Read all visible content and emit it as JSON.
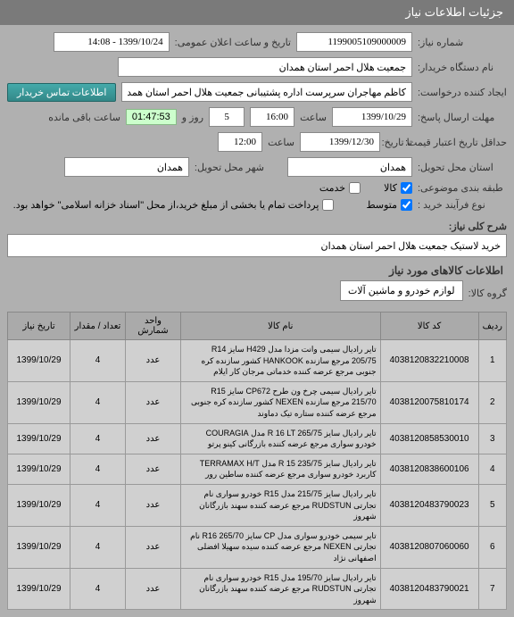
{
  "header_title": "جزئیات اطلاعات نیاز",
  "form": {
    "need_no_label": "شماره نیاز:",
    "need_no": "1199005109000009",
    "announce_label": "تاریخ و ساعت اعلان عمومی:",
    "announce_value": "1399/10/24 - 14:08",
    "buyer_label": "نام دستگاه خریدار:",
    "buyer_value": "جمعیت هلال احمر استان همدان",
    "creator_label": "ایجاد کننده درخواست:",
    "creator_value": "کاظم مهاجران سرپرست اداره پشتیبانی جمعیت هلال احمر استان همدان",
    "contact_btn": "اطلاعات تماس خریدار",
    "deadline_label": "مهلت ارسال پاسخ:",
    "deadline_date": "1399/10/29",
    "time_label": "ساعت",
    "deadline_time": "16:00",
    "days_remaining": "5",
    "days_label": "روز و",
    "countdown": "01:47:53",
    "remaining_label": "ساعت باقی مانده",
    "validity_label": "حداقل تاریخ اعتبار قیمت:",
    "validity_to_label": "تا تاریخ:",
    "validity_date": "1399/12/30",
    "validity_time": "12:00",
    "delivery_state_label": "استان محل تحویل:",
    "delivery_state": "همدان",
    "delivery_city_label": "شهر محل تحویل:",
    "delivery_city": "همدان",
    "category_label": "طبقه بندی موضوعی:",
    "goods_label": "کالا",
    "service_label": "خدمت",
    "process_label": "نوع فرآیند خرید :",
    "medium_label": "متوسط",
    "note_text": "پرداخت تمام یا بخشی از مبلغ خرید،از محل \"اسناد خزانه اسلامی\" خواهد بود.",
    "desc_label": "شرح کلی نیاز:",
    "desc_value": "خرید لاستیک جمعیت هلال احمر استان همدان"
  },
  "items_section": {
    "title": "اطلاعات کالاهای مورد نیاز",
    "group_label": "گروه کالا:",
    "group_value": "لوازم خودرو و ماشین آلات",
    "columns": {
      "row": "ردیف",
      "code": "کد کالا",
      "name": "نام کالا",
      "unit": "واحد شمارش",
      "qty": "تعداد / مقدار",
      "date": "تاریخ نیاز"
    },
    "rows": [
      {
        "n": "1",
        "code": "4038120832210008",
        "name": "تایر رادیال سیمی وانت مزدا مدل H429 سایز R14 205/75 مرجع سازنده HANKOOK کشور سازنده کره جنوبی مرجع عرضه کننده خدماتی مرجان کار ایلام",
        "unit": "عدد",
        "qty": "4",
        "date": "1399/10/29"
      },
      {
        "n": "2",
        "code": "4038120075810174",
        "name": "تایر رادیال سیمی چرخ ون طرح CP672 سایز R15 215/70 مرجع سازنده NEXEN کشور سازنده کره جنوبی مرجع عرضه کننده ستاره تیک دماوند",
        "unit": "عدد",
        "qty": "4",
        "date": "1399/10/29"
      },
      {
        "n": "3",
        "code": "4038120858530010",
        "name": "تایر رادیال سایز R 16 LT 265/75 مدل COURAGIA خودرو سواری مرجع عرضه کننده بازرگانی کینو پرتو",
        "unit": "عدد",
        "qty": "4",
        "date": "1399/10/29"
      },
      {
        "n": "4",
        "code": "4038120838600106",
        "name": "تایر رادیال سایز R 15 235/75 مدل TERRAMAX H/T کاربرد خودرو سواری مرجع عرضه کننده ساطین رور",
        "unit": "عدد",
        "qty": "4",
        "date": "1399/10/29"
      },
      {
        "n": "5",
        "code": "4038120483790023",
        "name": "تایر رادیال سایز 215/75 مدل R15 خودرو سواری نام تجارتی RUDSTUN مرجع عرضه کننده سهند بازرگانان شهروز",
        "unit": "عدد",
        "qty": "4",
        "date": "1399/10/29"
      },
      {
        "n": "6",
        "code": "4038120807060060",
        "name": "تایر سیمی خودرو سواری مدل CP سایز R16 265/70 نام تجارتی NEXEN مرجع عرضه کننده سیده سهیلا افضلی اصفهانی نژاد",
        "unit": "عدد",
        "qty": "4",
        "date": "1399/10/29"
      },
      {
        "n": "7",
        "code": "4038120483790021",
        "name": "تایر رادیال سایز 195/70 مدل R15 خودرو سواری نام تجارتی RUDSTUN مرجع عرضه کننده سهند بازرگانان شهروز",
        "unit": "عدد",
        "qty": "4",
        "date": "1399/10/29"
      }
    ]
  }
}
